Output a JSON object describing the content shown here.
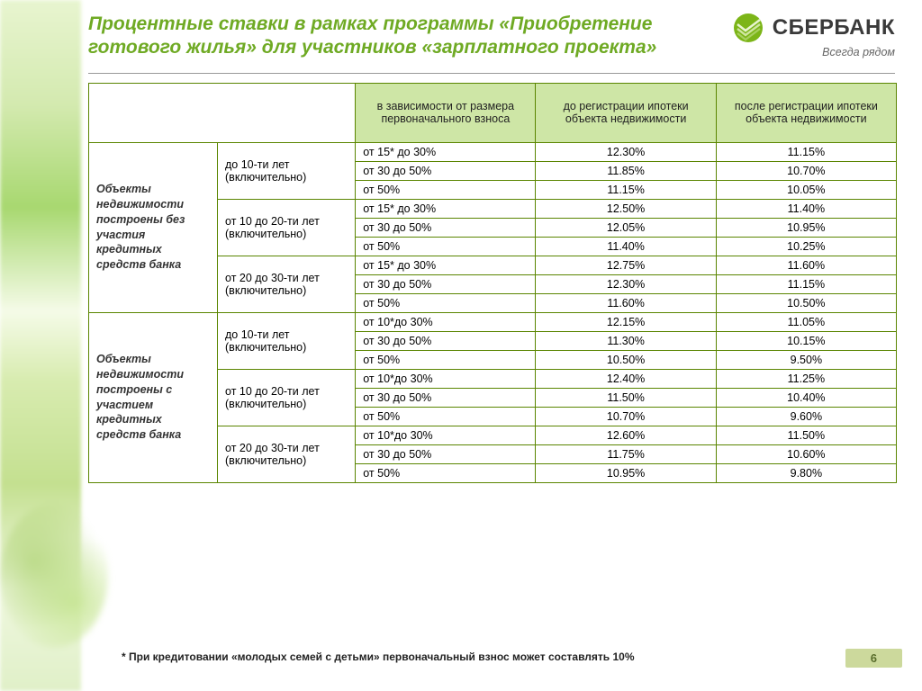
{
  "brand": {
    "name": "СБЕРБАНК",
    "slogan": "Всегда рядом",
    "logo_colors": [
      "#7cb518",
      "#b4d769",
      "#e0eec0"
    ]
  },
  "title": "Процентные ставки в рамках программы «Приобретение готового жилья» для участников «зарплатного проекта»",
  "columns": {
    "deposit": "в зависимости от размера первоначального взноса",
    "before": "до регистрации ипотеки объекта недвижимости",
    "after": "после регистрации ипотеки объекта недвижимости"
  },
  "terms": [
    "до 10-ти лет (включительно)",
    "от 10 до 20-ти лет (включительно)",
    "от 20 до 30-ти лет (включительно)"
  ],
  "deposits_a": [
    "от 15* до 30%",
    "от 30 до 50%",
    "от 50%"
  ],
  "deposits_b": [
    "от 10*до 30%",
    "от 30 до 50%",
    "от 50%"
  ],
  "sections": [
    {
      "label": "Объекты недвижимости построены без участия кредитных средств банка",
      "dep_set": "a",
      "rates": [
        [
          [
            "12.30%",
            "11.15%"
          ],
          [
            "11.85%",
            "10.70%"
          ],
          [
            "11.15%",
            "10.05%"
          ]
        ],
        [
          [
            "12.50%",
            "11.40%"
          ],
          [
            "12.05%",
            "10.95%"
          ],
          [
            "11.40%",
            "10.25%"
          ]
        ],
        [
          [
            "12.75%",
            "11.60%"
          ],
          [
            "12.30%",
            "11.15%"
          ],
          [
            "11.60%",
            "10.50%"
          ]
        ]
      ]
    },
    {
      "label": "Объекты недвижимости построены с участием кредитных средств банка",
      "dep_set": "b",
      "rates": [
        [
          [
            "12.15%",
            "11.05%"
          ],
          [
            "11.30%",
            "10.15%"
          ],
          [
            "10.50%",
            "9.50%"
          ]
        ],
        [
          [
            "12.40%",
            "11.25%"
          ],
          [
            "11.50%",
            "10.40%"
          ],
          [
            "10.70%",
            "9.60%"
          ]
        ],
        [
          [
            "12.60%",
            "11.50%"
          ],
          [
            "11.75%",
            "10.60%"
          ],
          [
            "10.95%",
            "9.80%"
          ]
        ]
      ]
    }
  ],
  "footnote": "* При кредитовании «молодых семей с детьми» первоначальный  взнос  может составлять 10%",
  "page_number": "6",
  "palette": {
    "title_color": "#6faa24",
    "header_bg": "#cee6a6",
    "border": "#5a8500",
    "pagenum_bg": "#ccd99c",
    "pagenum_fg": "#5a6e2d"
  }
}
